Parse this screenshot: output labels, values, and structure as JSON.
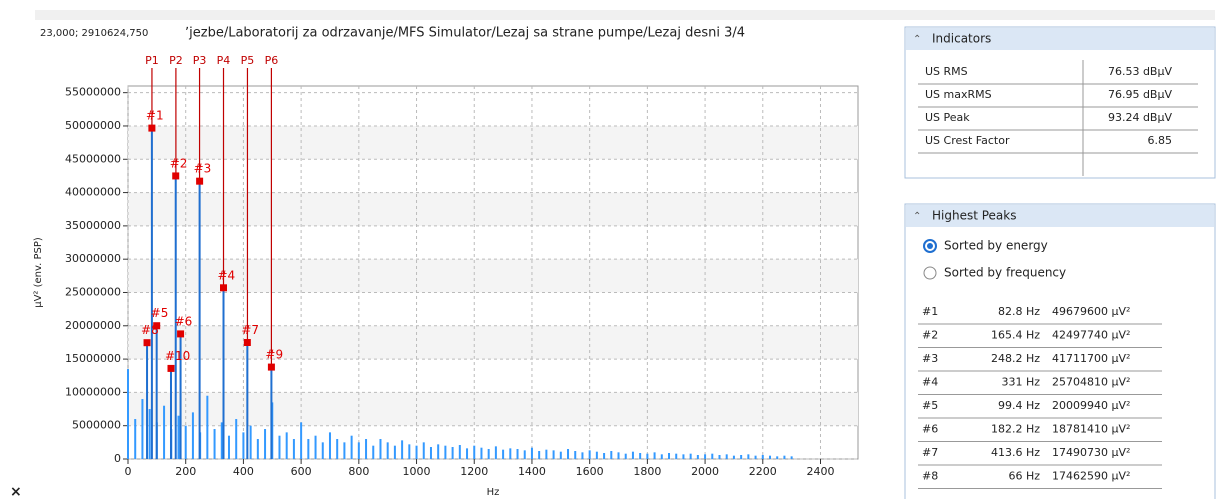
{
  "coords": "23,000; 2910624,750",
  "path": "ʼjezbe/Laboratorij za odrzavanje/MFS Simulator/Lezaj sa strane pumpe/Lezaj desni 3/4",
  "chart_data": {
    "type": "bar",
    "ylabel": "µV² (env. PSP)",
    "xlabel": "Hz",
    "xlim": [
      0,
      2530
    ],
    "ylim": [
      0,
      56000000
    ],
    "xticks": [
      0,
      200,
      400,
      600,
      800,
      1000,
      1200,
      1400,
      1600,
      1800,
      2000,
      2200,
      2400
    ],
    "yticks": [
      0,
      5000000,
      10000000,
      15000000,
      20000000,
      25000000,
      30000000,
      35000000,
      40000000,
      45000000,
      50000000,
      55000000
    ],
    "grid": true,
    "color": "#3399ff",
    "marker_color": "#c00000",
    "markers": [
      {
        "label": "P1",
        "x": 83
      },
      {
        "label": "P2",
        "x": 166
      },
      {
        "label": "P3",
        "x": 248
      },
      {
        "label": "P4",
        "x": 331
      },
      {
        "label": "P5",
        "x": 414
      },
      {
        "label": "P6",
        "x": 497
      }
    ],
    "peaks": [
      {
        "label": "#1",
        "x": 82.8,
        "y": 49679600
      },
      {
        "label": "#2",
        "x": 165.4,
        "y": 42497740
      },
      {
        "label": "#3",
        "x": 248.2,
        "y": 41711700
      },
      {
        "label": "#4",
        "x": 331,
        "y": 25704810
      },
      {
        "label": "#5",
        "x": 99.4,
        "y": 20009940
      },
      {
        "label": "#6",
        "x": 182.2,
        "y": 18781410
      },
      {
        "label": "#7",
        "x": 413.6,
        "y": 17490730
      },
      {
        "label": "#8",
        "x": 66,
        "y": 17462590
      },
      {
        "label": "#9",
        "x": 497,
        "y": 13800000
      },
      {
        "label": "#10",
        "x": 149,
        "y": 13600000
      }
    ],
    "spectrum": {
      "x": [
        0,
        25,
        50,
        75,
        100,
        125,
        150,
        175,
        200,
        225,
        250,
        275,
        300,
        325,
        350,
        375,
        400,
        425,
        450,
        475,
        500,
        525,
        550,
        575,
        600,
        625,
        650,
        675,
        700,
        725,
        750,
        775,
        800,
        825,
        850,
        875,
        900,
        925,
        950,
        975,
        1000,
        1025,
        1050,
        1075,
        1100,
        1125,
        1150,
        1175,
        1200,
        1225,
        1250,
        1275,
        1300,
        1325,
        1350,
        1375,
        1400,
        1425,
        1450,
        1475,
        1500,
        1525,
        1550,
        1575,
        1600,
        1625,
        1650,
        1675,
        1700,
        1725,
        1750,
        1775,
        1800,
        1825,
        1850,
        1875,
        1900,
        1925,
        1950,
        1975,
        2000,
        2025,
        2050,
        2075,
        2100,
        2125,
        2150,
        2175,
        2200,
        2225,
        2250,
        2275,
        2300
      ],
      "values": [
        13500000,
        6000000,
        9000000,
        7500000,
        5500000,
        8000000,
        4500000,
        6500000,
        5000000,
        7000000,
        4000000,
        9500000,
        4500000,
        5500000,
        3500000,
        6000000,
        4000000,
        5000000,
        3000000,
        4500000,
        8500000,
        3500000,
        4000000,
        3000000,
        5500000,
        3000000,
        3500000,
        2500000,
        4000000,
        3000000,
        2500000,
        3500000,
        2500000,
        3000000,
        2000000,
        3000000,
        2500000,
        2000000,
        2800000,
        2200000,
        2000000,
        2500000,
        1800000,
        2200000,
        2000000,
        1800000,
        2100000,
        1600000,
        2000000,
        1700000,
        1500000,
        1900000,
        1400000,
        1600000,
        1500000,
        1300000,
        1700000,
        1200000,
        1400000,
        1300000,
        1100000,
        1500000,
        1200000,
        1000000,
        1300000,
        1100000,
        900000,
        1200000,
        1000000,
        800000,
        1100000,
        900000,
        800000,
        1000000,
        700000,
        900000,
        800000,
        700000,
        800000,
        600000,
        700000,
        800000,
        600000,
        700000,
        500000,
        600000,
        700000,
        500000,
        600000,
        500000,
        400000,
        500000,
        400000
      ]
    }
  },
  "indicators": {
    "title": "Indicators",
    "rows": [
      [
        "US RMS",
        "76.53 dBµV"
      ],
      [
        "US maxRMS",
        "76.95 dBµV"
      ],
      [
        "US Peak",
        "93.24 dBµV"
      ],
      [
        "US Crest Factor",
        "6.85"
      ]
    ]
  },
  "highest_peaks": {
    "title": "Highest Peaks",
    "options": [
      "Sorted by energy",
      "Sorted by frequency"
    ],
    "selected": 0,
    "rows": [
      [
        "#1",
        "82.8 Hz",
        "49679600 µV²"
      ],
      [
        "#2",
        "165.4 Hz",
        "42497740 µV²"
      ],
      [
        "#3",
        "248.2 Hz",
        "41711700 µV²"
      ],
      [
        "#4",
        "331 Hz",
        "25704810 µV²"
      ],
      [
        "#5",
        "99.4 Hz",
        "20009940 µV²"
      ],
      [
        "#6",
        "182.2 Hz",
        "18781410 µV²"
      ],
      [
        "#7",
        "413.6 Hz",
        "17490730 µV²"
      ],
      [
        "#8",
        "66 Hz",
        "17462590 µV²"
      ]
    ]
  }
}
